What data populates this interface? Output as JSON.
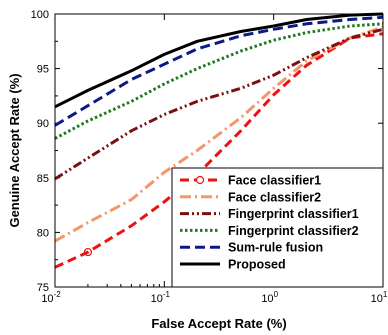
{
  "chart_data": {
    "type": "line",
    "title": "",
    "xlabel": "False Accept Rate (%)",
    "ylabel": "Genuine Accept Rate (%)",
    "xscale": "log",
    "xlim": [
      0.01,
      10
    ],
    "ylim": [
      75,
      100
    ],
    "x_ticks": [
      {
        "value": 0.01,
        "base": "10",
        "exp": "-2"
      },
      {
        "value": 0.1,
        "base": "10",
        "exp": "-1"
      },
      {
        "value": 1,
        "base": "10",
        "exp": "0"
      },
      {
        "value": 10,
        "base": "10",
        "exp": "1"
      }
    ],
    "y_ticks": [
      "75",
      "80",
      "85",
      "90",
      "95",
      "100"
    ],
    "grid": false,
    "legend_position": "bottom-right",
    "series": [
      {
        "name": "Face classifier1",
        "color": "#ee1111",
        "dash": "9,5",
        "marker": "circle",
        "x": [
          0.01,
          0.02,
          0.05,
          0.1,
          0.2,
          0.5,
          1,
          2,
          5,
          10
        ],
        "y": [
          76.8,
          78.2,
          80.6,
          82.8,
          85.3,
          89.3,
          92.6,
          95.3,
          97.8,
          98.2
        ]
      },
      {
        "name": "Face classifier2",
        "color": "#f4956a",
        "dash": "11,4,2,4",
        "marker": "none",
        "x": [
          0.01,
          0.02,
          0.05,
          0.1,
          0.2,
          0.5,
          1,
          2,
          5,
          10
        ],
        "y": [
          79.2,
          80.9,
          83.0,
          85.5,
          87.5,
          90.5,
          93.2,
          95.7,
          97.8,
          98.8
        ]
      },
      {
        "name": "Fingerprint classifier1",
        "color": "#7a1010",
        "dash": "9,3,2,3,2,3",
        "marker": "none",
        "x": [
          0.01,
          0.02,
          0.05,
          0.1,
          0.2,
          0.5,
          1,
          2,
          5,
          10
        ],
        "y": [
          84.9,
          86.8,
          89.3,
          90.8,
          92.0,
          93.2,
          94.4,
          96.0,
          97.8,
          98.6
        ]
      },
      {
        "name": "Fingerprint classifier2",
        "color": "#1f7a1f",
        "dash": "2.5,2.5",
        "marker": "none",
        "x": [
          0.01,
          0.02,
          0.05,
          0.1,
          0.2,
          0.5,
          1,
          2,
          5,
          10
        ],
        "y": [
          88.6,
          90.2,
          92.0,
          93.6,
          95.0,
          96.6,
          97.6,
          98.3,
          98.9,
          99.1
        ]
      },
      {
        "name": "Sum-rule fusion",
        "color": "#0a1a8a",
        "dash": "10,5",
        "marker": "none",
        "x": [
          0.01,
          0.02,
          0.05,
          0.1,
          0.2,
          0.5,
          1,
          2,
          5,
          10
        ],
        "y": [
          89.8,
          91.6,
          94.0,
          95.4,
          96.8,
          98.0,
          98.6,
          99.1,
          99.5,
          99.7
        ]
      },
      {
        "name": "Proposed",
        "color": "#000000",
        "dash": "",
        "marker": "none",
        "x": [
          0.01,
          0.02,
          0.05,
          0.1,
          0.2,
          0.5,
          1,
          2,
          5,
          10
        ],
        "y": [
          91.5,
          93.0,
          94.8,
          96.3,
          97.5,
          98.4,
          98.9,
          99.5,
          99.9,
          100.0
        ]
      }
    ]
  }
}
